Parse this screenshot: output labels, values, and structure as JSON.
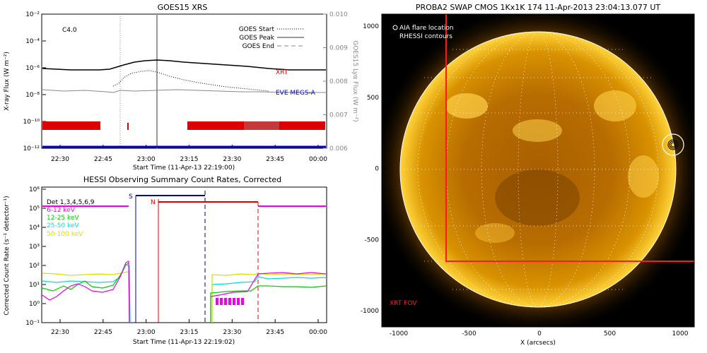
{
  "goes": {
    "title": "GOES15 XRS",
    "flare_class": "C4.0",
    "ylabel": "X-ray Flux (W m⁻²)",
    "y2label": "GOES15 Lyα Flux (W m⁻²)",
    "xlabel": "Start Time (11-Apr-13 22:19:00)",
    "xticks": [
      "22:30",
      "22:45",
      "23:00",
      "23:15",
      "23:30",
      "23:45",
      "00:00"
    ],
    "yticks": [
      "10⁻²",
      "10⁻⁴",
      "10⁻⁶",
      "10⁻⁸",
      "10⁻¹⁰",
      "10⁻¹²"
    ],
    "y2ticks": [
      "0.010",
      "0.009",
      "0.008",
      "0.007",
      "0.006"
    ],
    "legend": [
      {
        "label": "GOES Start",
        "style": "dotted"
      },
      {
        "label": "GOES Peak",
        "style": "solid"
      },
      {
        "label": "GOES End",
        "style": "dashed"
      }
    ],
    "tag_xrt": "XRT",
    "tag_eve": "EVE MEGS-A",
    "colors": {
      "xrt": "#dd0000",
      "eve": "#0000cc",
      "peak": "#999999"
    }
  },
  "hessi": {
    "title": "HESSI Observing Summary Count Rates, Corrected",
    "ylabel": "Corrected Count Rate (s⁻¹ detector⁻¹)",
    "xlabel": "Start Time (11-Apr-13 22:19:02)",
    "xticks": [
      "22:30",
      "22:45",
      "23:00",
      "23:15",
      "23:30",
      "23:45",
      "00:00"
    ],
    "yticks": [
      "10⁶",
      "10⁵",
      "10⁴",
      "10³",
      "10²",
      "10¹",
      "10⁰",
      "10⁻¹"
    ],
    "legend": [
      {
        "label": "Det 1,3,4,5,6,9",
        "color": "#000000"
      },
      {
        "label": "6-12 keV",
        "color": "#ee00ee"
      },
      {
        "label": "12-25 keV",
        "color": "#00cc00"
      },
      {
        "label": "25-50 keV",
        "color": "#00dddd"
      },
      {
        "label": "50-100 keV",
        "color": "#dddd00"
      }
    ],
    "marker_s": "S",
    "marker_n": "N"
  },
  "swap": {
    "title": "PROBA2 SWAP CMOS 1Kx1K 174 11-Apr-2013 23:04:13.077 UT",
    "legend": [
      "AIA flare location",
      "RHESSI contours"
    ],
    "xlabel": "X (arcsecs)",
    "xticks": [
      "-1000",
      "-500",
      "0",
      "500",
      "1000"
    ],
    "yticks": [
      "1000",
      "500",
      "0",
      "-500",
      "-1000"
    ],
    "fov_label": "XRT FOV",
    "colors": {
      "fov": "#ff1a1a",
      "sun": "#e9a100"
    }
  }
}
